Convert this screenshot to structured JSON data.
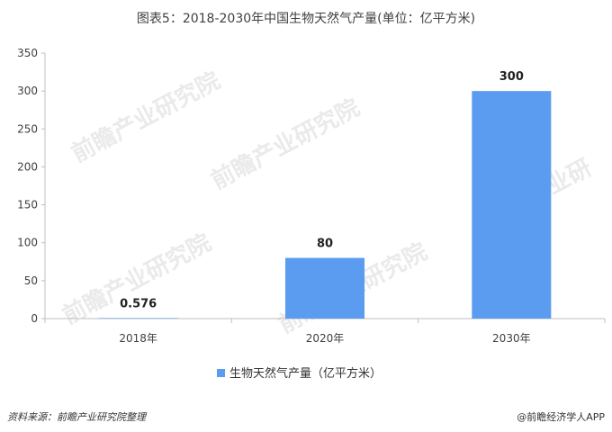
{
  "title": "图表5：2018-2030年中国生物天然气产量(单位：亿平方米)",
  "footer": {
    "source": "资料来源：前瞻产业研究院整理",
    "brand": "@前瞻经济学人APP"
  },
  "watermark": "前瞻产业研究院",
  "colors": {
    "bar": "#5B9BF0",
    "axis": "#BFBFBF",
    "grid": "#D9D9D9"
  },
  "chart_data": {
    "type": "bar",
    "categories": [
      "2018年",
      "2020年",
      "2030年"
    ],
    "series": [
      {
        "name": "生物天然气产量（亿平方米）",
        "values": [
          0.576,
          80,
          300
        ]
      }
    ],
    "data_labels": [
      "0.576",
      "80",
      "300"
    ],
    "ylim": [
      0,
      350
    ],
    "yticks": [
      0,
      50,
      100,
      150,
      200,
      250,
      300,
      350
    ],
    "grid": false,
    "legend": "bottom-center"
  }
}
